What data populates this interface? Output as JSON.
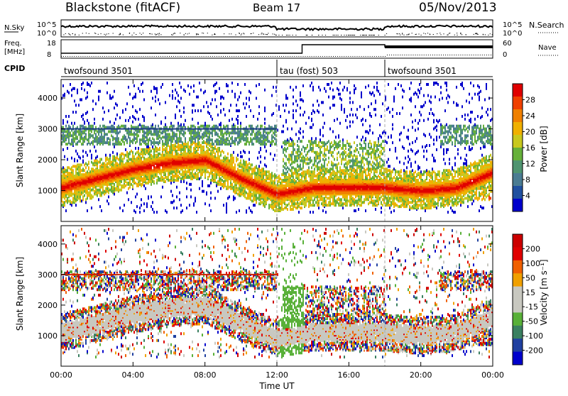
{
  "header": {
    "left_title": "Blackstone (fitACF)",
    "center_title": "Beam 17",
    "right_title": "05/Nov/2013"
  },
  "top_panel_1": {
    "left_label": "N.Sky",
    "left_ticks": [
      "10^5",
      "10^0"
    ],
    "right_ticks": [
      "10^5",
      "10^0"
    ],
    "right_label": "N.Search"
  },
  "top_panel_2": {
    "left_label_1": "Freq.",
    "left_label_2": "[MHz]",
    "left_ticks": [
      "18",
      "8"
    ],
    "right_ticks": [
      "60",
      "0"
    ],
    "right_label": "Nave"
  },
  "cpid": {
    "label": "CPID",
    "segments": [
      {
        "name": "twofsound 3501",
        "start_hour": 0,
        "end_hour": 12
      },
      {
        "name": "tau (fost) 503",
        "start_hour": 12,
        "end_hour": 18
      },
      {
        "name": "twofsound 3501",
        "start_hour": 18,
        "end_hour": 24
      }
    ]
  },
  "colors": {
    "power_scale": [
      "#0000cc",
      "#2050a0",
      "#4a7c92",
      "#4f9470",
      "#66b03a",
      "#c8c81e",
      "#f0b000",
      "#f08000",
      "#f04000",
      "#e00000"
    ],
    "velocity_scale": [
      "#0000cc",
      "#2040a0",
      "#3a8060",
      "#58b038",
      "#c8c8c0",
      "#c8c8c0",
      "#f0a000",
      "#f06000",
      "#e00000",
      "#cc0000"
    ]
  },
  "chart_data": [
    {
      "type": "heatmap",
      "panel": "power",
      "ylabel": "Slant Range [km]",
      "yticks": [
        "4000",
        "3000",
        "2000",
        "1000"
      ],
      "ylim": [
        0,
        4600
      ],
      "xlim": [
        0,
        24
      ],
      "colorbar_label": "Power [dB]",
      "colorbar_ticks": [
        "28",
        "24",
        "20",
        "16",
        "12",
        "8",
        "4"
      ],
      "colorbar_range": [
        0,
        32
      ],
      "dominant_band_km": [
        {
          "hour": 0,
          "range_km": 1100
        },
        {
          "hour": 2,
          "range_km": 1400
        },
        {
          "hour": 4,
          "range_km": 1700
        },
        {
          "hour": 6,
          "range_km": 1900
        },
        {
          "hour": 8,
          "range_km": 2000
        },
        {
          "hour": 10,
          "range_km": 1400
        },
        {
          "hour": 12,
          "range_km": 900
        },
        {
          "hour": 14,
          "range_km": 1100
        },
        {
          "hour": 16,
          "range_km": 1100
        },
        {
          "hour": 18,
          "range_km": 1100
        },
        {
          "hour": 20,
          "range_km": 1000
        },
        {
          "hour": 22,
          "range_km": 1100
        },
        {
          "hour": 24,
          "range_km": 1600
        }
      ]
    },
    {
      "type": "heatmap",
      "panel": "velocity",
      "ylabel": "Slant Range [km]",
      "yticks": [
        "4000",
        "3000",
        "2000",
        "1000"
      ],
      "ylim": [
        0,
        4600
      ],
      "xlim": [
        0,
        24
      ],
      "xlabel": "Time UT",
      "xticks": [
        "00:00",
        "04:00",
        "08:00",
        "12:00",
        "16:00",
        "20:00",
        "00:00"
      ],
      "colorbar_label": "Velocity [m s⁻¹]",
      "colorbar_ticks": [
        "200",
        "100",
        "50",
        "15",
        "-15",
        "-50",
        "-100",
        "-200"
      ]
    }
  ]
}
